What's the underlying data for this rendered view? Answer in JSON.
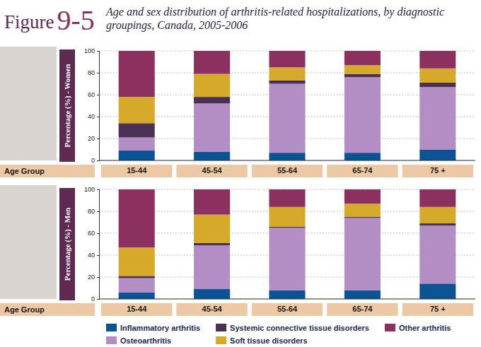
{
  "figure": {
    "label": "Figure",
    "number": "9-5",
    "title": "Age and sex distribution of arthritis-related hospitalizations, by diagnostic groupings, Canada, 2005-2006"
  },
  "chart_data": [
    {
      "type": "bar",
      "stacked": true,
      "grid": true,
      "ylabel": "Percentage (%) - Women",
      "xlabel": "Age Group",
      "categories": [
        "15-44",
        "45-54",
        "55-64",
        "65-74",
        "75 +"
      ],
      "ylim": [
        0,
        100
      ],
      "yticks": [
        0,
        20,
        40,
        60,
        80,
        100
      ],
      "series": [
        {
          "name": "Inflammatory arthritis",
          "color": "#0b5394",
          "values": [
            9,
            8,
            7,
            7,
            10
          ]
        },
        {
          "name": "Osteoarthritis",
          "color": "#b28ec4",
          "values": [
            12,
            44,
            63,
            69,
            57
          ]
        },
        {
          "name": "Systemic connective tissue disorders",
          "color": "#4b3056",
          "values": [
            13,
            6,
            3,
            3,
            4
          ]
        },
        {
          "name": "Soft tissue disorders",
          "color": "#d6a92b",
          "values": [
            24,
            21,
            12,
            8,
            13
          ]
        },
        {
          "name": "Other arthritis",
          "color": "#8c3060",
          "values": [
            42,
            21,
            15,
            13,
            16
          ]
        }
      ]
    },
    {
      "type": "bar",
      "stacked": true,
      "grid": true,
      "legend": "bottom",
      "ylabel": "Percentage (%) - Men",
      "xlabel": "Age Group",
      "categories": [
        "15-44",
        "45-54",
        "55-64",
        "65-74",
        "75 +"
      ],
      "ylim": [
        0,
        100
      ],
      "yticks": [
        0,
        20,
        40,
        60,
        80,
        100
      ],
      "series": [
        {
          "name": "Inflammatory arthritis",
          "color": "#0b5394",
          "values": [
            6,
            9,
            8,
            8,
            14
          ]
        },
        {
          "name": "Osteoarthritis",
          "color": "#b28ec4",
          "values": [
            13,
            40,
            57,
            66,
            53
          ]
        },
        {
          "name": "Systemic connective tissue disorders",
          "color": "#4b3056",
          "values": [
            2,
            2,
            1,
            1,
            2
          ]
        },
        {
          "name": "Soft tissue disorders",
          "color": "#d6a92b",
          "values": [
            26,
            26,
            18,
            12,
            15
          ]
        },
        {
          "name": "Other arthritis",
          "color": "#8c3060",
          "values": [
            53,
            23,
            16,
            13,
            16
          ]
        }
      ]
    }
  ]
}
